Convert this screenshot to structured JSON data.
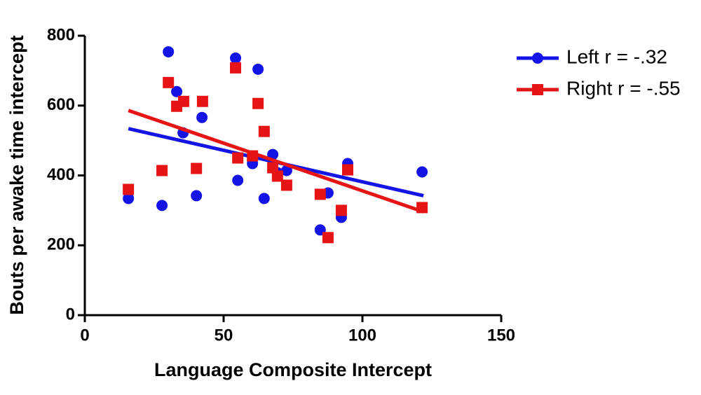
{
  "chart_data": {
    "type": "scatter",
    "xlabel": "Language Composite Intercept",
    "ylabel": "Bouts per awake time intercept",
    "xlim": [
      0,
      150
    ],
    "xticks": [
      0,
      50,
      100,
      150
    ],
    "ylim": [
      0,
      800
    ],
    "yticks": [
      0,
      200,
      400,
      600,
      800
    ],
    "grid": false,
    "legend": "right",
    "series": [
      {
        "name": "Left r = -.32",
        "color": "#1414e6",
        "marker": "circle",
        "x": [
          15.7,
          27.8,
          30.1,
          33.1,
          35.4,
          42.2,
          40.2,
          54.3,
          55.1,
          60.4,
          62.4,
          64.6,
          67.7,
          69.4,
          72.7,
          84.8,
          87.6,
          92.4,
          94.7,
          121.5
        ],
        "values": [
          334,
          314,
          754,
          640,
          522,
          566,
          342,
          736,
          386,
          434,
          704,
          334,
          460,
          408,
          414,
          244,
          350,
          280,
          434,
          410
        ],
        "fit": {
          "x": [
            15.7,
            122
          ],
          "values": [
            534,
            342
          ]
        }
      },
      {
        "name": "Right r = -.55",
        "color": "#e61414",
        "marker": "square",
        "x": [
          15.7,
          27.8,
          30.1,
          33.1,
          35.6,
          40.2,
          42.4,
          54.3,
          55.1,
          60.4,
          62.4,
          64.6,
          67.7,
          69.4,
          72.7,
          84.8,
          87.6,
          92.4,
          94.7,
          121.5
        ],
        "values": [
          360,
          414,
          666,
          598,
          612,
          420,
          612,
          708,
          450,
          456,
          606,
          526,
          422,
          398,
          372,
          346,
          222,
          300,
          416,
          308
        ],
        "fit": {
          "x": [
            15.7,
            122
          ],
          "values": [
            586,
            296
          ]
        }
      }
    ]
  }
}
